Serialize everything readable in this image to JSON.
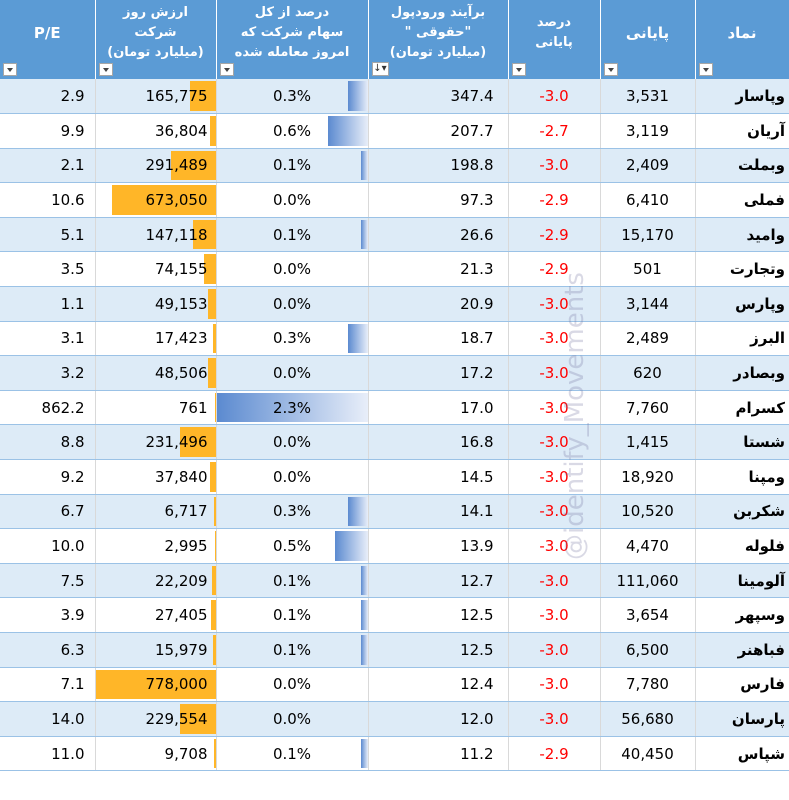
{
  "headers": {
    "pe": "P/E",
    "market_cap_line1": "ارزش روز شرکت",
    "market_cap_line2": "(میلیارد تومان)",
    "pct_traded_line1": "درصد از کل",
    "pct_traded_line2": "سهام شرکت که",
    "pct_traded_line3": "امروز معامله شده",
    "inflow_line1": "برآیند ورودپول",
    "inflow_line2": "\" حقوقی\"",
    "inflow_line3": "(میلیارد تومان)",
    "change_line1": "درصد",
    "change_line2": "پایانی",
    "close": "پایانی",
    "symbol": "نماد"
  },
  "watermark": "@identify_Movements",
  "max_cap": 778000,
  "max_pct": 2.3,
  "rows": [
    {
      "pe": "2.9",
      "cap": "165,775",
      "cap_val": 165775,
      "pct": "0.3%",
      "pct_val": 0.3,
      "inflow": "347.4",
      "change": "-3.0",
      "close": "3,531",
      "symbol": "وپاسار"
    },
    {
      "pe": "9.9",
      "cap": "36,804",
      "cap_val": 36804,
      "pct": "0.6%",
      "pct_val": 0.6,
      "inflow": "207.7",
      "change": "-2.7",
      "close": "3,119",
      "symbol": "آریان"
    },
    {
      "pe": "2.1",
      "cap": "291,489",
      "cap_val": 291489,
      "pct": "0.1%",
      "pct_val": 0.1,
      "inflow": "198.8",
      "change": "-3.0",
      "close": "2,409",
      "symbol": "وبملت"
    },
    {
      "pe": "10.6",
      "cap": "673,050",
      "cap_val": 673050,
      "pct": "0.0%",
      "pct_val": 0.0,
      "inflow": "97.3",
      "change": "-2.9",
      "close": "6,410",
      "symbol": "فملی"
    },
    {
      "pe": "5.1",
      "cap": "147,118",
      "cap_val": 147118,
      "pct": "0.1%",
      "pct_val": 0.1,
      "inflow": "26.6",
      "change": "-2.9",
      "close": "15,170",
      "symbol": "وامید"
    },
    {
      "pe": "3.5",
      "cap": "74,155",
      "cap_val": 74155,
      "pct": "0.0%",
      "pct_val": 0.0,
      "inflow": "21.3",
      "change": "-2.9",
      "close": "501",
      "symbol": "وتجارت"
    },
    {
      "pe": "1.1",
      "cap": "49,153",
      "cap_val": 49153,
      "pct": "0.0%",
      "pct_val": 0.0,
      "inflow": "20.9",
      "change": "-3.0",
      "close": "3,144",
      "symbol": "وپارس"
    },
    {
      "pe": "3.1",
      "cap": "17,423",
      "cap_val": 17423,
      "pct": "0.3%",
      "pct_val": 0.3,
      "inflow": "18.7",
      "change": "-3.0",
      "close": "2,489",
      "symbol": "البرز"
    },
    {
      "pe": "3.2",
      "cap": "48,506",
      "cap_val": 48506,
      "pct": "0.0%",
      "pct_val": 0.0,
      "inflow": "17.2",
      "change": "-3.0",
      "close": "620",
      "symbol": "وبصادر"
    },
    {
      "pe": "862.2",
      "cap": "761",
      "cap_val": 761,
      "pct": "2.3%",
      "pct_val": 2.3,
      "inflow": "17.0",
      "change": "-3.0",
      "close": "7,760",
      "symbol": "کسرام"
    },
    {
      "pe": "8.8",
      "cap": "231,496",
      "cap_val": 231496,
      "pct": "0.0%",
      "pct_val": 0.0,
      "inflow": "16.8",
      "change": "-3.0",
      "close": "1,415",
      "symbol": "شستا"
    },
    {
      "pe": "9.2",
      "cap": "37,840",
      "cap_val": 37840,
      "pct": "0.0%",
      "pct_val": 0.0,
      "inflow": "14.5",
      "change": "-3.0",
      "close": "18,920",
      "symbol": "ومپنا"
    },
    {
      "pe": "6.7",
      "cap": "6,717",
      "cap_val": 6717,
      "pct": "0.3%",
      "pct_val": 0.3,
      "inflow": "14.1",
      "change": "-3.0",
      "close": "10,520",
      "symbol": "شکربن"
    },
    {
      "pe": "10.0",
      "cap": "2,995",
      "cap_val": 2995,
      "pct": "0.5%",
      "pct_val": 0.5,
      "inflow": "13.9",
      "change": "-3.0",
      "close": "4,470",
      "symbol": "فلوله"
    },
    {
      "pe": "7.5",
      "cap": "22,209",
      "cap_val": 22209,
      "pct": "0.1%",
      "pct_val": 0.1,
      "inflow": "12.7",
      "change": "-3.0",
      "close": "111,060",
      "symbol": "آلومینا"
    },
    {
      "pe": "3.9",
      "cap": "27,405",
      "cap_val": 27405,
      "pct": "0.1%",
      "pct_val": 0.1,
      "inflow": "12.5",
      "change": "-3.0",
      "close": "3,654",
      "symbol": "وسپهر"
    },
    {
      "pe": "6.3",
      "cap": "15,979",
      "cap_val": 15979,
      "pct": "0.1%",
      "pct_val": 0.1,
      "inflow": "12.5",
      "change": "-3.0",
      "close": "6,500",
      "symbol": "فباهنر"
    },
    {
      "pe": "7.1",
      "cap": "778,000",
      "cap_val": 778000,
      "pct": "0.0%",
      "pct_val": 0.0,
      "inflow": "12.4",
      "change": "-3.0",
      "close": "7,780",
      "symbol": "فارس"
    },
    {
      "pe": "14.0",
      "cap": "229,554",
      "cap_val": 229554,
      "pct": "0.0%",
      "pct_val": 0.0,
      "inflow": "12.0",
      "change": "-3.0",
      "close": "56,680",
      "symbol": "پارسان"
    },
    {
      "pe": "11.0",
      "cap": "9,708",
      "cap_val": 9708,
      "pct": "0.1%",
      "pct_val": 0.1,
      "inflow": "11.2",
      "change": "-2.9",
      "close": "40,450",
      "symbol": "شپاس"
    }
  ]
}
